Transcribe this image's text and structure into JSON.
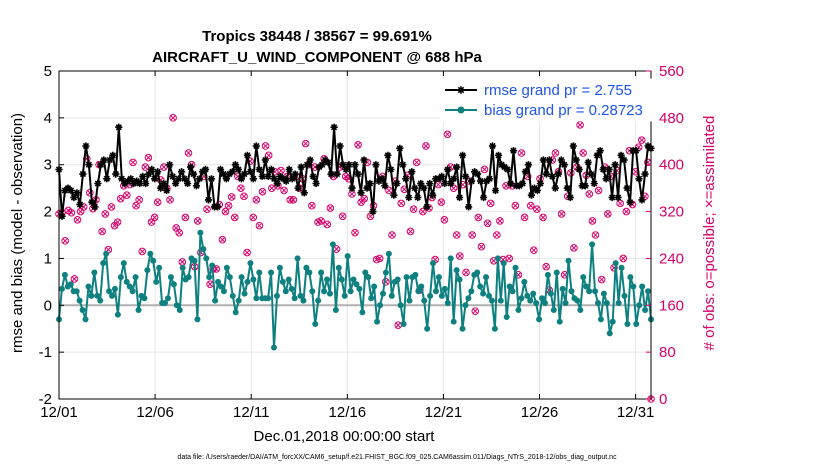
{
  "chart_data": {
    "type": "line",
    "title": "Tropics 38448 / 38567 = 99.691%",
    "subtitle": "AIRCRAFT_U_WIND_COMPONENT @ 688 hPa",
    "xlabel": "Dec.01,2018 00:00:00 start",
    "ylabel": "rmse and bias (model - observation)",
    "ylabel_right": "# of obs: o=possible; ×=assimilated",
    "xlim": [
      1,
      31.8
    ],
    "ylim": [
      -2,
      5
    ],
    "ylim_right": [
      0,
      560
    ],
    "x_ticks": [
      1,
      6,
      11,
      16,
      21,
      26,
      31
    ],
    "x_tick_labels": [
      "12/01",
      "12/06",
      "12/11",
      "12/16",
      "12/21",
      "12/26",
      "12/31"
    ],
    "y_ticks": [
      -2,
      -1,
      0,
      1,
      2,
      3,
      4,
      5
    ],
    "y_tick_labels": [
      "-2",
      "-1",
      "0",
      "1",
      "2",
      "3",
      "4",
      "5"
    ],
    "y_ticks_right": [
      0,
      80,
      160,
      240,
      320,
      400,
      480,
      560
    ],
    "y_tick_labels_right": [
      "0",
      "80",
      "160",
      "240",
      "320",
      "400",
      "480",
      "560"
    ],
    "footnote": "data file: /Users/raeder/DAI/ATM_forcXX/CAM6_setup/f.e21.FHIST_BGC.f09_025.CAM6assim.011/Diags_NTrS_2018-12/obs_diag_output.nc",
    "colors": {
      "rmse": "#000000",
      "bias": "#0e8080",
      "obs": "#d6006a",
      "legend_text": "#1f55e8",
      "zero": "#b0b0b0"
    },
    "series": [
      {
        "name": "rmse grand pr = 2.755",
        "values": [
          2.9,
          1.9,
          2.45,
          2.5,
          2.45,
          2.3,
          2.4,
          2.15,
          2.8,
          3.4,
          3.0,
          2.2,
          2.1,
          2.6,
          3.0,
          3.1,
          2.7,
          3.1,
          3.2,
          2.8,
          3.8,
          2.7,
          2.6,
          2.65,
          2.7,
          2.6,
          2.65,
          2.6,
          2.75,
          2.6,
          2.8,
          2.9,
          2.7,
          2.85,
          2.5,
          2.6,
          2.45,
          3.0,
          2.75,
          2.6,
          2.7,
          2.85,
          2.7,
          2.6,
          2.95,
          2.8,
          2.55,
          2.7,
          2.85,
          2.9,
          2.25,
          2.7,
          2.1,
          2.1,
          2.9,
          2.8,
          2.7,
          2.8,
          2.85,
          3.0,
          2.9,
          2.7,
          2.8,
          3.2,
          2.85,
          2.7,
          3.4,
          2.9,
          2.75,
          3.1,
          2.75,
          2.9,
          2.7,
          2.6,
          2.75,
          2.7,
          2.65,
          2.9,
          2.7,
          2.8,
          2.5,
          2.95,
          2.4,
          3.0,
          3.1,
          2.75,
          2.6,
          2.95,
          3.0,
          3.1,
          3.05,
          2.8,
          3.8,
          2.8,
          3.4,
          3.0,
          2.9,
          3.0,
          2.5,
          3.0,
          2.8,
          2.4,
          3.1,
          2.5,
          2.6,
          2.0,
          3.0,
          2.65,
          2.7,
          2.55,
          3.2,
          2.9,
          2.35,
          2.6,
          3.35,
          3.0,
          2.7,
          2.3,
          2.85,
          2.5,
          2.3,
          2.6,
          2.5,
          2.1,
          2.6,
          2.35,
          2.7,
          2.7,
          2.75,
          2.6,
          2.9,
          2.6,
          2.7,
          2.95,
          2.3,
          3.2,
          2.75,
          2.1,
          2.65,
          2.85,
          2.8,
          2.65,
          2.3,
          2.65,
          2.7,
          3.4,
          2.45,
          3.2,
          3.0,
          2.95,
          2.9,
          2.6,
          3.3,
          2.55,
          2.55,
          2.6,
          2.85,
          3.0,
          2.35,
          2.5,
          2.45,
          2.6,
          3.1,
          2.8,
          3.1,
          2.75,
          2.5,
          2.8,
          3.1,
          3.0,
          2.5,
          2.3,
          3.4,
          3.1,
          2.9,
          2.55,
          2.55,
          3.05,
          2.8,
          2.6,
          3.2,
          3.3,
          2.9,
          2.7,
          2.9,
          2.3,
          3.0,
          2.3,
          3.2,
          3.1,
          2.5,
          2.2,
          3.3,
          3.3,
          2.7,
          2.25,
          2.8,
          3.4,
          3.35
        ]
      },
      {
        "name": "bias grand pr = 0.28723",
        "values": [
          -0.3,
          0.35,
          0.65,
          0.4,
          0.45,
          0.3,
          0.3,
          0.1,
          -0.1,
          -0.3,
          0.4,
          0.2,
          0.7,
          0.2,
          0.1,
          0.9,
          1.1,
          0.3,
          0.2,
          0.35,
          -0.2,
          0.6,
          0.9,
          0.5,
          0.4,
          0.3,
          0.6,
          -0.1,
          0.2,
          0.15,
          0.75,
          1.1,
          0.95,
          0.5,
          0.8,
          0.05,
          0.05,
          0.15,
          0.6,
          0.45,
          0.0,
          -0.1,
          0.8,
          0.55,
          0.6,
          1.0,
          0.95,
          -0.3,
          1.55,
          1.2,
          1.0,
          0.6,
          0.85,
          0.1,
          0.5,
          0.4,
          0.3,
          0.8,
          0.6,
          0.2,
          -0.15,
          0.1,
          0.6,
          0.25,
          0.5,
          0.9,
          0.55,
          0.15,
          0.7,
          0.15,
          0.15,
          0.15,
          0.7,
          -0.9,
          0.2,
          0.8,
          0.5,
          0.3,
          0.55,
          0.35,
          0.15,
          1.0,
          0.2,
          0.1,
          0.8,
          0.7,
          0.3,
          -0.4,
          0.1,
          0.7,
          0.3,
          0.55,
          0.25,
          1.3,
          -0.1,
          0.8,
          0.55,
          0.2,
          1.05,
          0.3,
          0.55,
          0.45,
          0.35,
          -0.15,
          0.7,
          0.6,
          0.15,
          0.4,
          -0.35,
          0.0,
          0.25,
          0.7,
          1.1,
          0.2,
          0.5,
          0.55,
          0.0,
          -0.4,
          0.6,
          0.1,
          0.6,
          0.65,
          0.3,
          0.4,
          0.1,
          -0.5,
          0.2,
          0.9,
          0.3,
          0.6,
          0.2,
          0.35,
          0.05,
          1.0,
          -0.35,
          0.75,
          0.55,
          -0.5,
          0.0,
          0.15,
          0.3,
          0.65,
          0.7,
          0.4,
          0.25,
          0.6,
          0.2,
          0.1,
          -0.5,
          1.0,
          0.1,
          0.9,
          -0.25,
          0.4,
          0.3,
          0.8,
          -0.1,
          0.15,
          0.5,
          0.2,
          0.1,
          0.25,
          0.05,
          -0.3,
          0.15,
          0.05,
          0.65,
          0.25,
          -0.1,
          0.7,
          -0.35,
          0.35,
          0.05,
          0.95,
          0.3,
          0.15,
          0.1,
          -0.1,
          0.6,
          0.4,
          0.3,
          1.3,
          0.3,
          0.05,
          -0.3,
          0.25,
          0.05,
          -0.6,
          -0.35,
          0.9,
          0.05,
          0.8,
          0.2,
          -0.4,
          0.6,
          0.4,
          -0.4,
          0.0,
          0.4,
          -0.1,
          0.3,
          -0.3
        ]
      },
      {
        "name": "obs possible",
        "axis": "right",
        "values": [
          316,
          318,
          270,
          322,
          318,
          205,
          306,
          320,
          328,
          410,
          352,
          325,
          340,
          400,
          286,
          316,
          255,
          328,
          296,
          302,
          342,
          364,
          348,
          366,
          404,
          330,
          340,
          252,
          396,
          412,
          302,
          310,
          336,
          374,
          396,
          360,
          340,
          480,
          292,
          284,
          234,
          310,
          420,
          400,
          226,
          304,
          250,
          380,
          324,
          196,
          222,
          222,
          332,
          272,
          320,
          330,
          345,
          310,
          380,
          360,
          346,
          250,
          406,
          310,
          340,
          296,
          354,
          432,
          416,
          360,
          388,
          364,
          390,
          356,
          380,
          340,
          340,
          380,
          360,
          376,
          436,
          400,
          330,
          396,
          302,
          304,
          410,
          298,
          326,
          380,
          256,
          396,
          312,
          380,
          376,
          350,
          284,
          434,
          336,
          342,
          404,
          312,
          330,
          238,
          240,
          380,
          200,
          356,
          280,
          372,
          126,
          334,
          358,
          382,
          286,
          324,
          404,
          186,
          320,
          432,
          326,
          344,
          238,
          366,
          336,
          306,
          452,
          396,
          360,
          280,
          244,
          366,
          216,
          372,
          280,
          150,
          310,
          260,
          392,
          300,
          334,
          236,
          280,
          304,
          238,
          364,
          240,
          364,
          330,
          212,
          420,
          310,
          380,
          330,
          254,
          324,
          376,
          310,
          226,
          186,
          408,
          420,
          388,
          316,
          212,
          346,
          386,
          258,
          396,
          468,
          420,
          382,
          350,
          304,
          280,
          356,
          204,
          396,
          316,
          380,
          224,
          390,
          334,
          240,
          320,
          424,
          332,
          388,
          430,
          442,
          346,
          404,
          0
        ]
      }
    ]
  }
}
